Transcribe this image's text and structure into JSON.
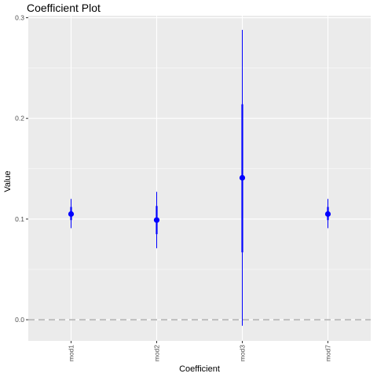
{
  "chart_data": {
    "type": "scatter",
    "title": "Coefficient Plot",
    "xlabel": "Coefficient",
    "ylabel": "Value",
    "categories": [
      "mod1",
      "mod2",
      "mod3",
      "mod7"
    ],
    "ylim": [
      -0.021,
      0.302
    ],
    "yticks": [
      0.0,
      0.1,
      0.2,
      0.3
    ],
    "ytick_labels": [
      "0.0",
      "0.1",
      "0.2",
      "0.3"
    ],
    "reference_line": 0.0,
    "grid": true,
    "legend": "none",
    "points": [
      {
        "category": "mod1",
        "estimate": 0.105,
        "inner_low": 0.099,
        "inner_high": 0.112,
        "outer_low": 0.091,
        "outer_high": 0.12
      },
      {
        "category": "mod2",
        "estimate": 0.099,
        "inner_low": 0.085,
        "inner_high": 0.113,
        "outer_low": 0.071,
        "outer_high": 0.127
      },
      {
        "category": "mod3",
        "estimate": 0.141,
        "inner_low": 0.067,
        "inner_high": 0.214,
        "outer_low": -0.006,
        "outer_high": 0.288
      },
      {
        "category": "mod7",
        "estimate": 0.105,
        "inner_low": 0.099,
        "inner_high": 0.112,
        "outer_low": 0.091,
        "outer_high": 0.12
      }
    ],
    "colors": {
      "panel": "#ebebeb",
      "grid_major": "#ffffff",
      "point": "#0000ff",
      "reference_line": "#bebebe"
    }
  }
}
